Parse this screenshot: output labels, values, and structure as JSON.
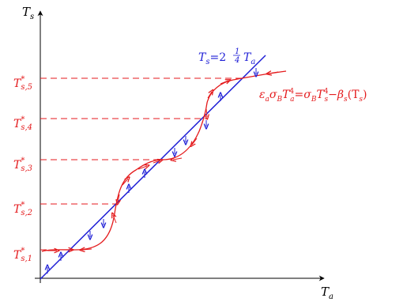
{
  "axes": {
    "y_label_main": "T",
    "y_label_sub": "s",
    "x_label_main": "T",
    "x_label_sub": "a"
  },
  "ticks": [
    {
      "main": "T",
      "sup": "*",
      "sub": "s,1"
    },
    {
      "main": "T",
      "sup": "*",
      "sub": "s,2"
    },
    {
      "main": "T",
      "sup": "*",
      "sub": "s,3"
    },
    {
      "main": "T",
      "sup": "*",
      "sub": "s,4"
    },
    {
      "main": "T",
      "sup": "*",
      "sub": "s,5"
    }
  ],
  "line_label": {
    "lhs_main": "T",
    "lhs_sub": "s",
    "eq": "=2",
    "frac_num": "1",
    "frac_den": "4",
    "rhs_main": "T",
    "rhs_sub": "a"
  },
  "curve_label": {
    "p1": "ε",
    "p1_sub": "a",
    "p2": "σ",
    "p2_sub": "B",
    "p3": "T",
    "p3_sub": "a",
    "p3_sup": "4",
    "eq": "=",
    "p4": "σ",
    "p4_sub": "B",
    "p5": "T",
    "p5_sub": "s",
    "p5_sup": "4",
    "minus": "−",
    "p6": "β",
    "p6_sub": "s",
    "p6_arg": "(T",
    "p6_arg_sub": "s",
    "p6_close": ")"
  },
  "colors": {
    "axis": "#000000",
    "line": "#1f1fd6",
    "curve": "#e41a1c",
    "dashed": "#e41a1c"
  }
}
